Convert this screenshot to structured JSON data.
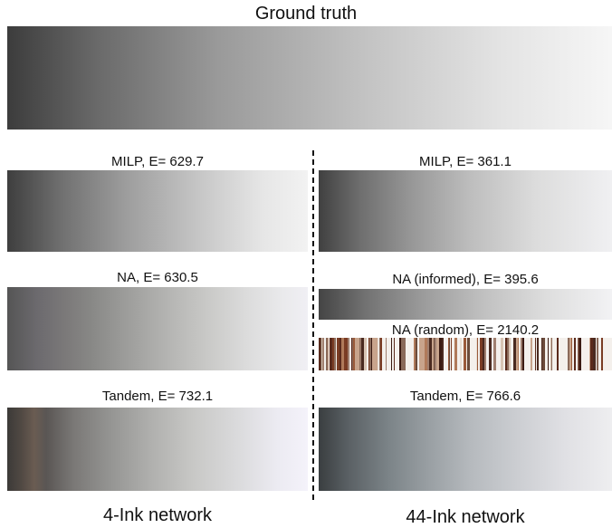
{
  "title": "Ground truth",
  "left": {
    "caption": "4-Ink network",
    "panels": [
      {
        "label": "MILP, E= 629.7"
      },
      {
        "label": "NA, E= 630.5"
      },
      {
        "label": "Tandem, E= 732.1"
      }
    ]
  },
  "right": {
    "caption": "44-Ink network",
    "panels": [
      {
        "label": "MILP, E= 361.1"
      },
      {
        "label": "NA (informed), E= 395.6"
      },
      {
        "label": "NA (random), E= 2140.2"
      },
      {
        "label": "Tandem, E= 766.6"
      }
    ]
  }
}
